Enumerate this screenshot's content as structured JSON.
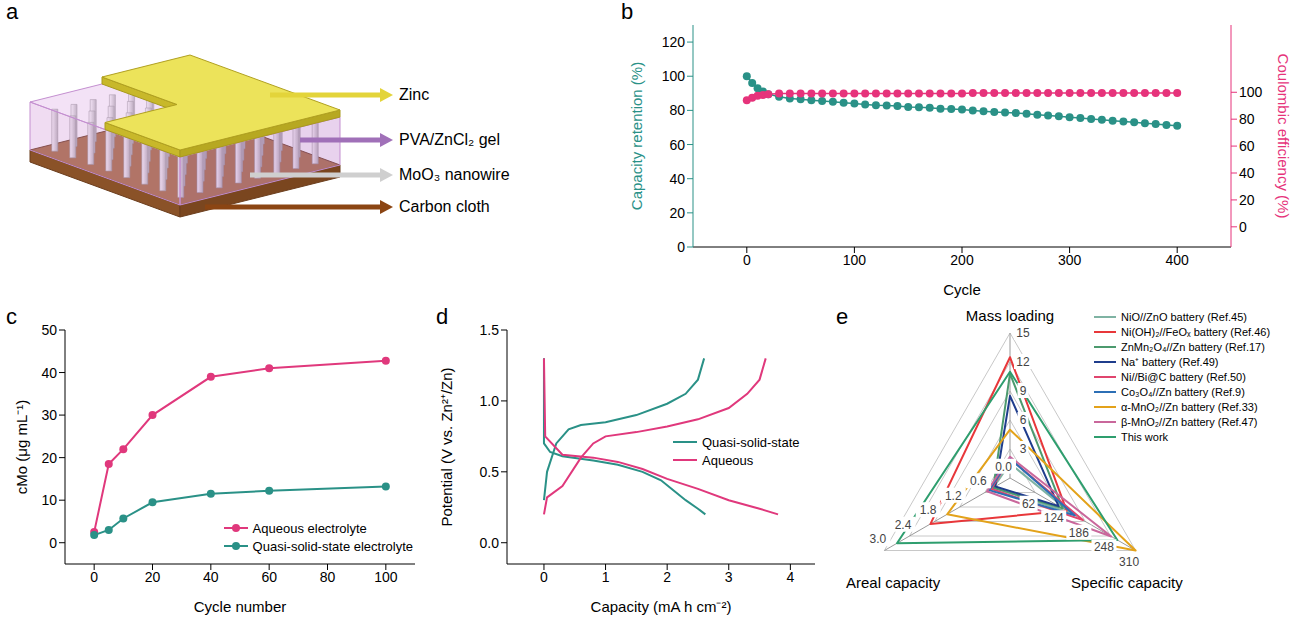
{
  "diagram": {
    "panel": "a",
    "labels": [
      {
        "text": "Zinc",
        "color": "#e3d43a"
      },
      {
        "text": "PVA/ZnCl₂ gel",
        "color": "#a070b8"
      },
      {
        "text": "MoO₃ nanowire",
        "color": "#cfcfcf"
      },
      {
        "text": "Carbon cloth",
        "color": "#8b4513"
      }
    ]
  },
  "chart_data": [
    {
      "panel": "b",
      "type": "line",
      "xlabel": "Cycle",
      "ylabel": "Capacity retention (%)",
      "y2label": "Coulombic efficiency (%)",
      "x": [
        0,
        5,
        10,
        15,
        20,
        30,
        40,
        50,
        60,
        70,
        80,
        90,
        100,
        110,
        120,
        130,
        140,
        150,
        160,
        170,
        180,
        190,
        200,
        210,
        220,
        230,
        240,
        250,
        260,
        270,
        280,
        290,
        300,
        310,
        320,
        330,
        340,
        350,
        360,
        370,
        380,
        390,
        400
      ],
      "xlim": [
        -50,
        450
      ],
      "xticks": [
        0,
        100,
        200,
        300,
        400
      ],
      "ylim": [
        0,
        130
      ],
      "yticks": [
        0,
        20,
        40,
        60,
        80,
        100,
        120
      ],
      "y2lim": [
        -15,
        150
      ],
      "y2ticks": [
        0,
        20,
        40,
        60,
        80,
        100
      ],
      "series": [
        {
          "color": "#2a9187",
          "marker": "circle",
          "values": [
            100,
            96,
            93,
            91,
            89.5,
            88,
            87,
            86.5,
            86,
            85.5,
            85,
            84.5,
            84,
            83.5,
            83,
            82.8,
            82.5,
            82,
            81.8,
            81.5,
            81,
            80.8,
            80.5,
            80,
            79.5,
            79,
            78.8,
            78.5,
            78,
            77.5,
            77,
            76.5,
            76,
            75.5,
            75,
            74.5,
            74,
            73.5,
            73,
            72.5,
            72,
            71.5,
            71
          ]
        },
        {
          "color": "#e6337b",
          "marker": "circle",
          "axis": "y2",
          "values": [
            94,
            96,
            97.5,
            98,
            98.5,
            99,
            99,
            99,
            99,
            99,
            99,
            99,
            99,
            99,
            99,
            99,
            99,
            99,
            99,
            99,
            99,
            99,
            99,
            99.5,
            99.5,
            99.5,
            99.5,
            99.5,
            99.5,
            99.5,
            99.5,
            99.5,
            99.5,
            99.5,
            99.5,
            99.5,
            99.5,
            99.5,
            99.5,
            99.5,
            99.5,
            99.5,
            99.5
          ]
        }
      ]
    },
    {
      "panel": "c",
      "type": "line",
      "xlabel": "Cycle number",
      "ylabel": "cMo (μg mL⁻¹)",
      "x": [
        0,
        5,
        10,
        20,
        40,
        60,
        100
      ],
      "xlim": [
        -10,
        110
      ],
      "xticks": [
        0,
        20,
        40,
        60,
        80,
        100
      ],
      "ylim": [
        -5,
        50
      ],
      "yticks": [
        0,
        10,
        20,
        30,
        40,
        50
      ],
      "legend": "lower right",
      "series": [
        {
          "name": "Aqueous electrolyte",
          "color": "#e0387c",
          "marker": "circle",
          "values": [
            2.5,
            18.5,
            22,
            30,
            39,
            41,
            42.8
          ]
        },
        {
          "name": "Quasi-solid-state electrolyte",
          "color": "#2a9187",
          "marker": "circle",
          "values": [
            1.8,
            3,
            5.7,
            9.5,
            11.5,
            12.2,
            13.2
          ]
        }
      ]
    },
    {
      "panel": "d",
      "type": "line",
      "xlabel": "Capacity (mA h cm⁻²)",
      "ylabel": "Potential (V vs. Zn²⁺/Zn)",
      "xlim": [
        -0.6,
        4.4
      ],
      "xticks": [
        0,
        1,
        2,
        3,
        4
      ],
      "ylim": [
        -0.15,
        1.5
      ],
      "yticks": [
        {
          "value": 0,
          "label": "0.0"
        },
        0.5,
        {
          "value": 1,
          "label": "1.0"
        },
        1.5
      ],
      "legend": "right",
      "series": [
        {
          "name": "Quasi-solid-state",
          "color": "#2a9187",
          "x": [
            0,
            0,
            0.1,
            0.3,
            0.8,
            1.2,
            1.6,
            1.9,
            2.1,
            2.3,
            2.5,
            2.62,
            0,
            0,
            0.05,
            0.2,
            0.4,
            0.6,
            1.0,
            1.5,
            2.0,
            2.3,
            2.5,
            2.6
          ],
          "values": [
            1.3,
            0.7,
            0.64,
            0.61,
            0.58,
            0.55,
            0.5,
            0.44,
            0.37,
            0.3,
            0.24,
            0.2,
            null,
            0.3,
            0.5,
            0.7,
            0.8,
            0.83,
            0.85,
            0.9,
            0.98,
            1.05,
            1.15,
            1.3
          ]
        },
        {
          "name": "Aqueous",
          "color": "#e0387c",
          "x": [
            0,
            0.02,
            0.3,
            0.8,
            1.2,
            1.6,
            2.0,
            2.5,
            3.0,
            3.5,
            3.8,
            0,
            0,
            0.05,
            0.3,
            0.6,
            0.8,
            1.0,
            1.5,
            2.0,
            2.5,
            3.0,
            3.3,
            3.5,
            3.6
          ],
          "values": [
            1.3,
            0.75,
            0.62,
            0.6,
            0.57,
            0.52,
            0.45,
            0.38,
            0.3,
            0.24,
            0.2,
            null,
            0.2,
            0.32,
            0.4,
            0.6,
            0.7,
            0.75,
            0.78,
            0.82,
            0.87,
            0.95,
            1.05,
            1.15,
            1.3
          ]
        }
      ]
    },
    {
      "panel": "e",
      "type": "radar",
      "legend": "upper right",
      "axes": [
        {
          "name": "Mass loading",
          "lim": [
            0,
            15
          ],
          "ticks": [
            3,
            6,
            9,
            12,
            15
          ]
        },
        {
          "name": "Specific capacity",
          "lim": [
            0,
            310
          ],
          "ticks": [
            62,
            124,
            186,
            248,
            310
          ]
        },
        {
          "name": "Areal capacity",
          "lim": [
            0,
            3
          ],
          "ticks": [
            {
              "value": 0,
              "label": "0.0"
            },
            0.6,
            1.2,
            1.8,
            2.4,
            {
              "value": 3,
              "label": "3.0"
            }
          ]
        }
      ],
      "series": [
        {
          "name": "NiO//ZnO battery (Ref.45)",
          "color": "#7fb3a3",
          "values": [
            1.5,
            150,
            0.4
          ]
        },
        {
          "name": "Ni(OH)₂//FeOₓ battery (Ref.46)",
          "color": "#e8373a",
          "values": [
            12.5,
            140,
            1.9
          ]
        },
        {
          "name": "ZnMn₂O₄//Zn battery (Ref.17)",
          "color": "#4c9a6e",
          "values": [
            10.8,
            130,
            0.4
          ]
        },
        {
          "name": "Na⁺ battery (Ref.49)",
          "color": "#1f3d8c",
          "values": [
            8.5,
            120,
            0.35
          ]
        },
        {
          "name": "Ni//Bi@C battery (Ref.50)",
          "color": "#e0456e",
          "values": [
            2,
            180,
            0.45
          ]
        },
        {
          "name": "Co₃O₄//Zn battery (Ref.9)",
          "color": "#2c6fb5",
          "values": [
            2,
            160,
            0.5
          ]
        },
        {
          "name": "α-MnO₂//Zn battery (Ref.33)",
          "color": "#e3a21a",
          "values": [
            5,
            310,
            1.5
          ]
        },
        {
          "name": "β-MnO₂//Zn battery (Ref.47)",
          "color": "#c9679b",
          "values": [
            2.2,
            250,
            0.55
          ]
        },
        {
          "name": "This work",
          "color": "#2e9e6e",
          "values": [
            11,
            265,
            2.7
          ]
        }
      ]
    }
  ]
}
